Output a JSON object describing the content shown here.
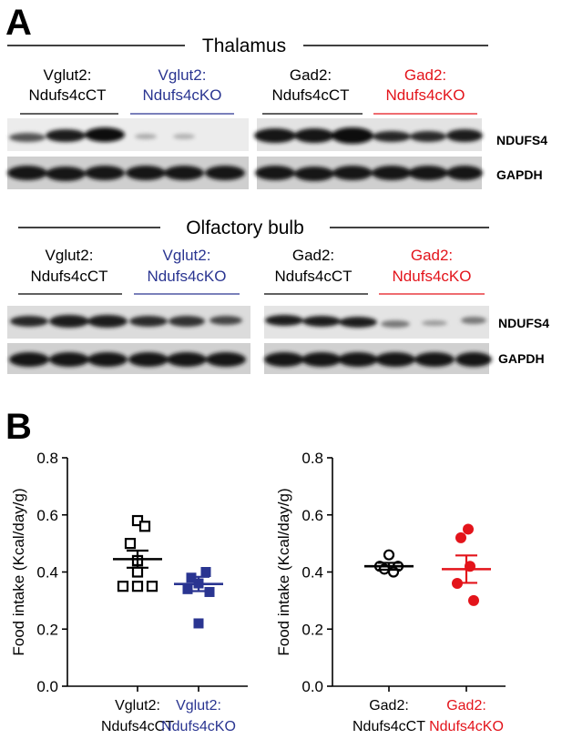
{
  "panel_a": {
    "letter": "A",
    "blots": [
      {
        "region": "Thalamus",
        "groups": [
          {
            "line1": "Vglut2:",
            "line2": "Ndufs4cCT",
            "color": "#000000"
          },
          {
            "line1": "Vglut2:",
            "line2": "Ndufs4cKO",
            "color": "#2a3591"
          },
          {
            "line1": "Gad2:",
            "line2": "Ndufs4cCT",
            "color": "#000000"
          },
          {
            "line1": "Gad2:",
            "line2": "Ndufs4cKO",
            "color": "#e3141b"
          }
        ],
        "rows": [
          "NDUFS4",
          "GAPDH"
        ]
      },
      {
        "region": "Olfactory bulb",
        "groups": [
          {
            "line1": "Vglut2:",
            "line2": "Ndufs4cCT",
            "color": "#000000"
          },
          {
            "line1": "Vglut2:",
            "line2": "Ndufs4cKO",
            "color": "#2a3591"
          },
          {
            "line1": "Gad2:",
            "line2": "Ndufs4cCT",
            "color": "#000000"
          },
          {
            "line1": "Gad2:",
            "line2": "Ndufs4cKO",
            "color": "#e3141b"
          }
        ],
        "rows": [
          "NDUFS4",
          "GAPDH"
        ]
      }
    ]
  },
  "panel_b": {
    "letter": "B"
  },
  "chart_data": [
    {
      "type": "scatter",
      "title": "",
      "ylabel": "Food intake (Kcal/day/g)",
      "ylim": [
        0.0,
        0.8
      ],
      "yticks": [
        "0.0",
        "0.2",
        "0.4",
        "0.6",
        "0.8"
      ],
      "categories": [
        {
          "line1": "Vglut2:",
          "line2": "Ndufs4cCT",
          "color": "#000000",
          "marker": "open-square"
        },
        {
          "line1": "Vglut2:",
          "line2": "Ndufs4cKO",
          "color": "#2a3591",
          "marker": "filled-square"
        }
      ],
      "series": [
        {
          "values": [
            0.58,
            0.56,
            0.5,
            0.44,
            0.4,
            0.35,
            0.35,
            0.35
          ],
          "mean": 0.445,
          "sem": 0.03
        },
        {
          "values": [
            0.4,
            0.38,
            0.36,
            0.34,
            0.33,
            0.22
          ],
          "mean": 0.358,
          "sem": 0.025
        }
      ]
    },
    {
      "type": "scatter",
      "title": "",
      "ylabel": "Food intake (Kcal/day/g)",
      "ylim": [
        0.0,
        0.8
      ],
      "yticks": [
        "0.0",
        "0.2",
        "0.4",
        "0.6",
        "0.8"
      ],
      "categories": [
        {
          "line1": "Gad2:",
          "line2": "Ndufs4cCT",
          "color": "#000000",
          "marker": "open-circle"
        },
        {
          "line1": "Gad2:",
          "line2": "Ndufs4cKO",
          "color": "#e3141b",
          "marker": "filled-circle"
        }
      ],
      "series": [
        {
          "values": [
            0.46,
            0.42,
            0.42,
            0.41,
            0.4
          ],
          "mean": 0.42,
          "sem": 0.012
        },
        {
          "values": [
            0.55,
            0.52,
            0.42,
            0.36,
            0.3
          ],
          "mean": 0.41,
          "sem": 0.048
        }
      ]
    }
  ]
}
